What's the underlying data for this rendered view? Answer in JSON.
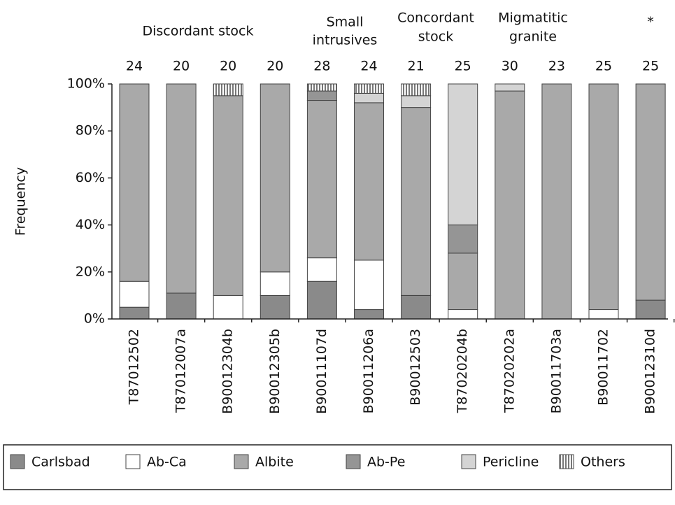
{
  "chart_data": {
    "type": "stacked_bar",
    "ylabel": "Frequency",
    "categories": [
      "T87012502",
      "T87012007a",
      "B90012304b",
      "B90012305b",
      "B90011107d",
      "B90011206a",
      "B90012503",
      "T87020204b",
      "T87020202a",
      "B90011703a",
      "B90011702",
      "B90012310d"
    ],
    "counts": [
      24,
      20,
      20,
      20,
      28,
      24,
      21,
      25,
      30,
      23,
      25,
      25
    ],
    "groups": [
      [
        "Discordant stock"
      ],
      [
        "Small",
        "intrusives"
      ],
      [
        "Concordant",
        "stock"
      ],
      [
        "Migmatitic",
        "granite"
      ],
      [
        "*"
      ]
    ],
    "series": [
      {
        "name": "Carlsbad",
        "color": "#8a8a8a",
        "values": [
          5,
          11,
          0,
          10,
          16,
          4,
          10,
          0,
          0,
          0,
          0,
          8
        ]
      },
      {
        "name": "Ab-Ca",
        "color": "#ffffff",
        "values": [
          11,
          0,
          10,
          10,
          10,
          21,
          0,
          4,
          0,
          0,
          4,
          0
        ]
      },
      {
        "name": "Albite",
        "color": "#a9a9a9",
        "values": [
          84,
          89,
          85,
          80,
          67,
          67,
          80,
          24,
          97,
          100,
          96,
          92
        ]
      },
      {
        "name": "Ab-Pe",
        "color": "#959595",
        "values": [
          0,
          0,
          0,
          0,
          4,
          0,
          0,
          12,
          0,
          0,
          0,
          0
        ]
      },
      {
        "name": "Pericline",
        "color": "#d4d4d4",
        "values": [
          0,
          0,
          0,
          0,
          0,
          4,
          5,
          60,
          3,
          0,
          0,
          0
        ]
      },
      {
        "name": "Others",
        "color": "#bdbdbd",
        "values": [
          0,
          0,
          5,
          0,
          3,
          4,
          5,
          0,
          0,
          0,
          0,
          0
        ]
      }
    ],
    "ylim": [
      0,
      100
    ],
    "yticks": [
      {
        "value": 0,
        "label": "0%"
      },
      {
        "value": 20,
        "label": "20%"
      },
      {
        "value": 40,
        "label": "40%"
      },
      {
        "value": 60,
        "label": "60%"
      },
      {
        "value": 80,
        "label": "80%"
      },
      {
        "value": 100,
        "label": "100%"
      }
    ]
  }
}
